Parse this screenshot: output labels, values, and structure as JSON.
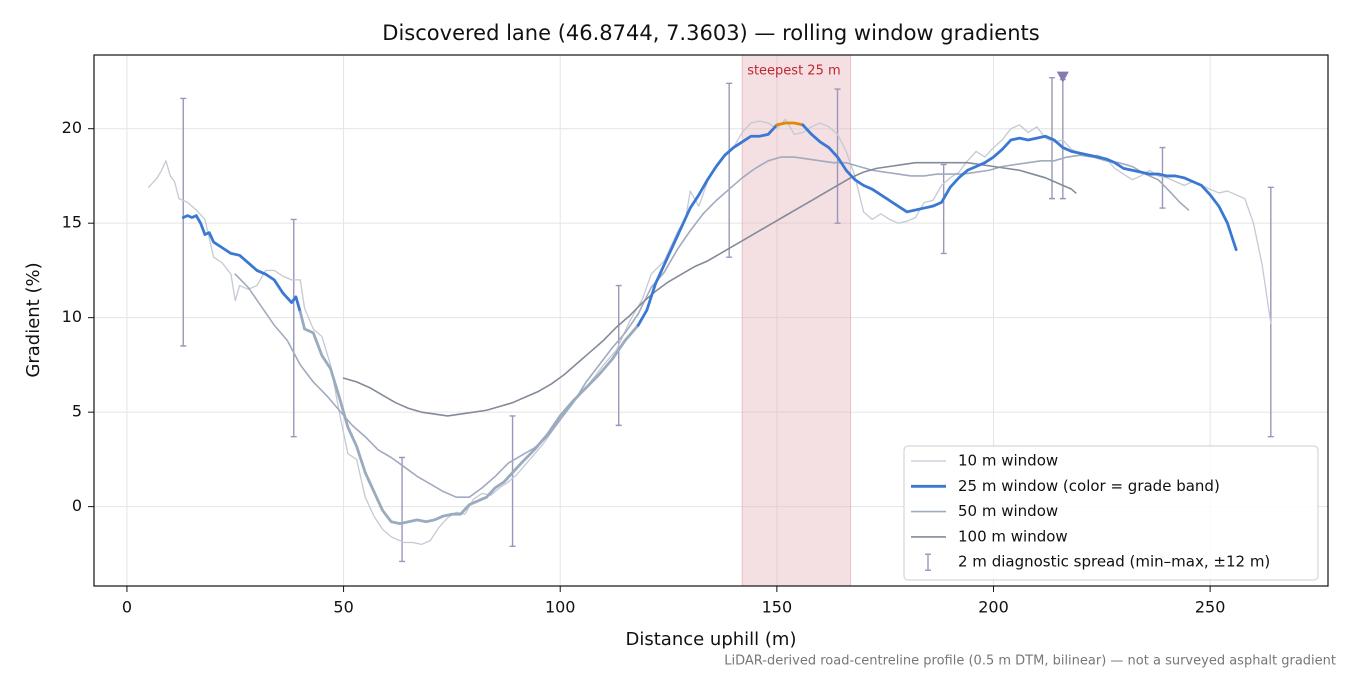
{
  "chart_data": {
    "type": "line",
    "title": "Discovered lane (46.8744, 7.3603) — rolling window gradients",
    "xlabel": "Distance uphill (m)",
    "ylabel": "Gradient (%)",
    "footnote": "LiDAR-derived road-centreline profile (0.5 m DTM, bilinear) — not a surveyed asphalt gradient",
    "xlim": [
      -7.6,
      277.2
    ],
    "ylim": [
      -4.2,
      23.9
    ],
    "xticks": [
      0,
      50,
      100,
      150,
      200,
      250
    ],
    "yticks": [
      0,
      5,
      10,
      15,
      20
    ],
    "grid": true,
    "legend": "lower right",
    "span": {
      "label": "steepest 25 m",
      "x": [
        142,
        167
      ],
      "color": "#e7b9be"
    },
    "series": [
      {
        "name": "10 m window",
        "color": "#c4c9d4",
        "width": 1.3,
        "x": [
          5,
          7,
          8,
          9,
          10,
          11,
          12,
          14,
          16,
          18,
          20,
          22,
          24,
          25,
          26,
          28,
          30,
          32,
          34,
          36,
          38,
          40,
          41,
          43,
          45,
          47,
          49,
          51,
          53,
          55,
          57,
          59,
          61,
          64,
          66,
          68,
          70,
          72,
          74,
          76,
          78,
          80,
          82,
          84,
          86,
          88,
          90,
          93,
          96,
          100,
          103,
          106,
          110,
          113,
          116,
          119,
          121,
          124,
          127,
          129,
          130,
          132,
          134,
          136,
          138,
          140,
          142,
          144,
          146,
          148,
          150,
          152,
          154,
          156,
          158,
          160,
          162,
          164,
          166,
          168,
          170,
          172,
          174,
          176,
          178,
          180,
          182,
          184,
          186,
          188,
          190,
          192,
          194,
          196,
          198,
          200,
          202,
          204,
          206,
          208,
          210,
          212,
          214,
          216,
          218,
          220,
          222,
          224,
          226,
          228,
          230,
          232,
          234,
          236,
          238,
          240,
          242,
          244,
          246,
          248,
          250,
          252,
          254,
          256,
          258,
          260,
          262,
          264
        ],
        "values": [
          16.9,
          17.4,
          17.8,
          18.3,
          17.5,
          17.2,
          16.3,
          16.1,
          15.7,
          15.2,
          13.2,
          12.9,
          12.3,
          10.9,
          11.7,
          11.5,
          11.7,
          12.5,
          12.5,
          12.2,
          12.0,
          12.0,
          10.5,
          9.4,
          9.0,
          7.5,
          5.0,
          2.8,
          2.5,
          0.5,
          -0.5,
          -1.2,
          -1.6,
          -1.9,
          -1.9,
          -2.0,
          -1.8,
          -1.1,
          -0.6,
          -0.3,
          -0.4,
          0.4,
          0.7,
          0.6,
          1.0,
          1.3,
          1.7,
          2.5,
          3.3,
          4.6,
          5.5,
          6.3,
          7.5,
          8.3,
          9.8,
          11.0,
          12.3,
          13.0,
          14.5,
          15.3,
          16.7,
          15.9,
          17.2,
          18.0,
          18.6,
          19.0,
          19.8,
          20.3,
          20.4,
          20.3,
          20.0,
          20.5,
          19.7,
          19.8,
          20.1,
          20.3,
          20.1,
          19.7,
          18.8,
          17.5,
          15.6,
          15.2,
          15.5,
          15.2,
          15.0,
          15.1,
          15.3,
          16.1,
          16.2,
          17.0,
          17.4,
          17.7,
          18.3,
          18.8,
          18.5,
          19.0,
          19.4,
          20.0,
          20.2,
          19.8,
          20.1,
          19.5,
          19.3,
          19.4,
          18.9,
          18.7,
          18.5,
          18.6,
          18.4,
          17.9,
          17.6,
          17.3,
          17.5,
          17.8,
          17.5,
          17.4,
          17.2,
          17.0,
          17.2,
          17.0,
          16.8,
          16.6,
          16.7,
          16.5,
          16.3,
          15.0,
          12.8,
          9.7
        ]
      },
      {
        "name": "25 m window (color = grade band)",
        "color": "#3a78d4",
        "width": 2.8,
        "grade_band_edges": [
          10,
          20
        ],
        "grade_band_colors": [
          "#9aabbf",
          "#3a78d4",
          "#e08a00"
        ],
        "x": [
          13,
          14,
          15,
          16,
          17,
          18,
          19,
          20,
          22,
          24,
          26,
          28,
          30,
          32,
          34,
          36,
          38,
          39,
          40,
          41,
          43,
          45,
          47,
          49,
          51,
          53,
          55,
          57,
          59,
          61,
          63,
          65,
          67,
          69,
          71,
          73,
          75,
          77,
          79,
          81,
          83,
          85,
          87,
          89,
          91,
          94,
          97,
          100,
          103,
          106,
          109,
          112,
          115,
          118,
          120,
          122,
          124,
          126,
          128,
          130,
          132,
          134,
          136,
          138,
          140,
          142,
          144,
          146,
          148,
          150,
          152,
          154,
          156,
          158,
          160,
          162,
          164,
          166,
          168,
          170,
          172,
          174,
          176,
          178,
          180,
          182,
          184,
          186,
          188,
          190,
          192,
          194,
          196,
          198,
          200,
          202,
          204,
          206,
          208,
          210,
          212,
          214,
          216,
          218,
          220,
          222,
          224,
          226,
          228,
          230,
          232,
          234,
          236,
          238,
          240,
          242,
          244,
          246,
          248,
          250,
          252,
          254,
          256
        ],
        "values": [
          15.3,
          15.4,
          15.3,
          15.4,
          15.0,
          14.4,
          14.5,
          14.0,
          13.7,
          13.4,
          13.3,
          12.9,
          12.5,
          12.3,
          12.0,
          11.3,
          10.8,
          11.1,
          10.3,
          9.4,
          9.2,
          8.0,
          7.3,
          5.8,
          4.2,
          3.2,
          1.8,
          0.8,
          -0.2,
          -0.8,
          -0.9,
          -0.8,
          -0.7,
          -0.8,
          -0.7,
          -0.5,
          -0.4,
          -0.4,
          0.1,
          0.3,
          0.5,
          1.0,
          1.3,
          1.8,
          2.3,
          3.0,
          3.8,
          4.8,
          5.6,
          6.3,
          7.0,
          7.8,
          8.8,
          9.6,
          10.4,
          11.8,
          12.8,
          13.8,
          14.8,
          15.8,
          16.5,
          17.3,
          18.0,
          18.6,
          19.0,
          19.3,
          19.6,
          19.6,
          19.7,
          20.2,
          20.3,
          20.3,
          20.2,
          19.7,
          19.3,
          19.0,
          18.5,
          17.8,
          17.3,
          17.0,
          16.8,
          16.5,
          16.2,
          15.9,
          15.6,
          15.7,
          15.8,
          15.9,
          16.1,
          16.9,
          17.4,
          17.8,
          18.0,
          18.2,
          18.5,
          18.9,
          19.4,
          19.5,
          19.4,
          19.5,
          19.6,
          19.4,
          19.0,
          18.8,
          18.7,
          18.6,
          18.5,
          18.4,
          18.2,
          17.9,
          17.8,
          17.7,
          17.6,
          17.6,
          17.5,
          17.5,
          17.4,
          17.2,
          17.0,
          16.5,
          15.9,
          15.0,
          13.6
        ]
      },
      {
        "name": "50 m window",
        "color": "#a0abbe",
        "width": 1.6,
        "x": [
          25,
          28,
          31,
          34,
          37,
          40,
          43,
          46,
          49,
          52,
          55,
          58,
          61,
          64,
          67,
          70,
          73,
          76,
          79,
          82,
          85,
          88,
          91,
          94,
          97,
          100,
          103,
          106,
          109,
          112,
          115,
          118,
          121,
          124,
          127,
          130,
          133,
          136,
          139,
          142,
          145,
          148,
          151,
          154,
          157,
          160,
          163,
          166,
          169,
          172,
          175,
          178,
          181,
          184,
          187,
          190,
          193,
          196,
          199,
          202,
          205,
          208,
          211,
          214,
          217,
          220,
          223,
          226,
          229,
          232,
          235,
          238,
          241,
          243,
          245
        ],
        "values": [
          12.3,
          11.6,
          10.6,
          9.6,
          8.8,
          7.5,
          6.6,
          5.9,
          5.1,
          4.3,
          3.7,
          3.0,
          2.6,
          2.1,
          1.6,
          1.2,
          0.8,
          0.5,
          0.5,
          1.0,
          1.6,
          2.3,
          2.7,
          3.1,
          3.7,
          4.6,
          5.5,
          6.6,
          7.5,
          8.4,
          9.2,
          10.2,
          11.6,
          12.4,
          13.6,
          14.6,
          15.5,
          16.2,
          16.8,
          17.4,
          17.9,
          18.3,
          18.5,
          18.5,
          18.4,
          18.3,
          18.2,
          18.2,
          18.0,
          17.8,
          17.7,
          17.6,
          17.5,
          17.5,
          17.6,
          17.6,
          17.6,
          17.7,
          17.8,
          18.0,
          18.1,
          18.2,
          18.3,
          18.3,
          18.5,
          18.6,
          18.5,
          18.3,
          18.2,
          18.0,
          17.6,
          17.3,
          16.6,
          16.1,
          15.7
        ]
      },
      {
        "name": "100 m window",
        "color": "#838b9a",
        "width": 1.6,
        "x": [
          50,
          53,
          56,
          59,
          62,
          65,
          68,
          71,
          74,
          77,
          80,
          83,
          86,
          89,
          92,
          95,
          98,
          101,
          104,
          107,
          110,
          113,
          116,
          119,
          122,
          125,
          128,
          131,
          134,
          137,
          140,
          143,
          146,
          149,
          152,
          155,
          158,
          161,
          164,
          167,
          170,
          173,
          176,
          179,
          182,
          185,
          188,
          191,
          194,
          197,
          200,
          203,
          206,
          209,
          212,
          215,
          218,
          219
        ],
        "values": [
          6.8,
          6.6,
          6.3,
          5.9,
          5.5,
          5.2,
          5.0,
          4.9,
          4.8,
          4.9,
          5.0,
          5.1,
          5.3,
          5.5,
          5.8,
          6.1,
          6.5,
          7.0,
          7.6,
          8.2,
          8.8,
          9.5,
          10.1,
          10.8,
          11.4,
          11.9,
          12.3,
          12.7,
          13.0,
          13.4,
          13.8,
          14.2,
          14.6,
          15.0,
          15.4,
          15.8,
          16.2,
          16.6,
          17.0,
          17.4,
          17.7,
          17.9,
          18.0,
          18.1,
          18.2,
          18.2,
          18.2,
          18.2,
          18.2,
          18.1,
          18.0,
          17.9,
          17.8,
          17.6,
          17.4,
          17.1,
          16.8,
          16.6
        ]
      }
    ],
    "error_bars": {
      "name": "2 m diagnostic spread (min–max, ±12 m)",
      "color": "#9a97bb",
      "x": [
        13,
        38.5,
        63.5,
        89,
        113.5,
        139,
        164,
        188.5,
        213.5,
        216,
        239,
        264
      ],
      "lower": [
        8.5,
        3.7,
        -2.9,
        -2.1,
        4.3,
        13.2,
        15.0,
        13.4,
        16.3,
        16.3,
        15.8,
        3.7
      ],
      "upper": [
        21.6,
        15.2,
        2.6,
        4.8,
        11.7,
        22.4,
        22.1,
        18.1,
        22.7,
        22.6,
        19.0,
        16.9
      ]
    },
    "marker": {
      "x": 216,
      "y": 22.7,
      "color": "#8878b0"
    }
  }
}
